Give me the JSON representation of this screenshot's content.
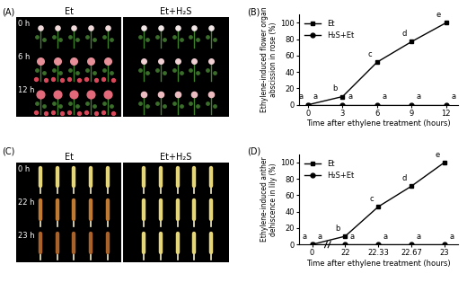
{
  "photo_panels": [
    {
      "panel_label": "(A)",
      "columns": [
        "Et",
        "Et+H₂S"
      ],
      "rows": [
        "0 h",
        "6 h",
        "12 h"
      ]
    },
    {
      "panel_label": "(C)",
      "columns": [
        "Et",
        "Et+H₂S"
      ],
      "rows": [
        "0 h",
        "22 h",
        "23 h"
      ]
    }
  ],
  "chart_data": [
    {
      "type": "line",
      "panel_label": "(B)",
      "x_label": "Time after ethylene treatment (hours)",
      "y_label": "Ethylene-induced flower organ abscission in rose (%)",
      "x": [
        0,
        3,
        6,
        9,
        12
      ],
      "xlim": [
        -0.8,
        13
      ],
      "xticks": [
        0,
        3,
        6,
        9,
        12
      ],
      "ylim": [
        0,
        110
      ],
      "yticks": [
        0,
        20,
        40,
        60,
        80,
        100
      ],
      "legend": "upper left",
      "series": [
        {
          "name": "Et",
          "color": "#000000",
          "marker": "square",
          "values": [
            0,
            10,
            52,
            77,
            100
          ],
          "annotations": [
            "a",
            "b",
            "c",
            "d",
            "e"
          ]
        },
        {
          "name": "H₂S+Et",
          "color": "#000000",
          "marker": "circle",
          "values": [
            0,
            0,
            0,
            0,
            0
          ],
          "annotations": [
            "a",
            "a",
            "a",
            "a",
            "a"
          ]
        }
      ]
    },
    {
      "type": "line",
      "panel_label": "(D)",
      "x_label": "Time after ethylene treatment (hours)",
      "y_label": "Ethylene-induced anther dehiscence in lily (%)",
      "categories": [
        "0",
        "22",
        "22.33",
        "22.67",
        "23"
      ],
      "ylim": [
        0,
        110
      ],
      "yticks": [
        0,
        20,
        40,
        60,
        80,
        100
      ],
      "legend": "upper left",
      "series": [
        {
          "name": "Et",
          "color": "#000000",
          "marker": "square",
          "values": [
            0,
            10,
            46,
            71,
            100
          ],
          "annotations": [
            "a",
            "b",
            "c",
            "d",
            "e"
          ]
        },
        {
          "name": "H₂S+Et",
          "color": "#000000",
          "marker": "circle",
          "values": [
            0,
            0,
            0,
            0,
            0
          ],
          "annotations": [
            "a",
            "a",
            "a",
            "a",
            "a"
          ]
        }
      ]
    }
  ]
}
